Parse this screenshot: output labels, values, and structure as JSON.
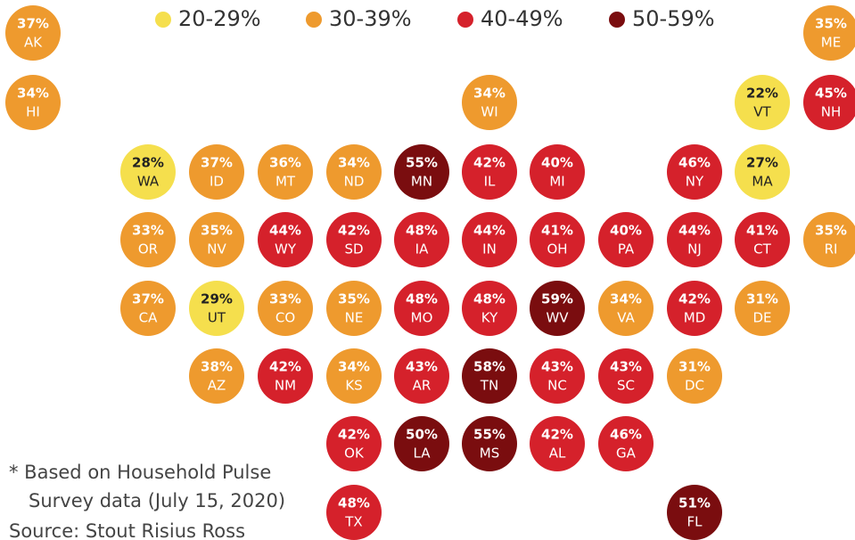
{
  "legend": [
    {
      "label": "20-29%",
      "color": "#f5df4d"
    },
    {
      "label": "30-39%",
      "color": "#ee9a2e"
    },
    {
      "label": "40-49%",
      "color": "#d5212b"
    },
    {
      "label": "50-59%",
      "color": "#7a0d0f"
    }
  ],
  "tiles": [
    {
      "state": "AK",
      "value": "37%",
      "color": "#ee9a2e"
    },
    {
      "state": "ME",
      "value": "35%",
      "color": "#ee9a2e"
    },
    {
      "state": "HI",
      "value": "34%",
      "color": "#ee9a2e"
    },
    {
      "state": "WI",
      "value": "34%",
      "color": "#ee9a2e"
    },
    {
      "state": "VT",
      "value": "22%",
      "color": "#f5df4d"
    },
    {
      "state": "NH",
      "value": "45%",
      "color": "#d5212b"
    },
    {
      "state": "WA",
      "value": "28%",
      "color": "#f5df4d"
    },
    {
      "state": "ID",
      "value": "37%",
      "color": "#ee9a2e"
    },
    {
      "state": "MT",
      "value": "36%",
      "color": "#ee9a2e"
    },
    {
      "state": "ND",
      "value": "34%",
      "color": "#ee9a2e"
    },
    {
      "state": "MN",
      "value": "55%",
      "color": "#7a0d0f"
    },
    {
      "state": "IL",
      "value": "42%",
      "color": "#d5212b"
    },
    {
      "state": "MI",
      "value": "40%",
      "color": "#d5212b"
    },
    {
      "state": "NY",
      "value": "46%",
      "color": "#d5212b"
    },
    {
      "state": "MA",
      "value": "27%",
      "color": "#f5df4d"
    },
    {
      "state": "OR",
      "value": "33%",
      "color": "#ee9a2e"
    },
    {
      "state": "NV",
      "value": "35%",
      "color": "#ee9a2e"
    },
    {
      "state": "WY",
      "value": "44%",
      "color": "#d5212b"
    },
    {
      "state": "SD",
      "value": "42%",
      "color": "#d5212b"
    },
    {
      "state": "IA",
      "value": "48%",
      "color": "#d5212b"
    },
    {
      "state": "IN",
      "value": "44%",
      "color": "#d5212b"
    },
    {
      "state": "OH",
      "value": "41%",
      "color": "#d5212b"
    },
    {
      "state": "PA",
      "value": "40%",
      "color": "#d5212b"
    },
    {
      "state": "NJ",
      "value": "44%",
      "color": "#d5212b"
    },
    {
      "state": "CT",
      "value": "41%",
      "color": "#d5212b"
    },
    {
      "state": "RI",
      "value": "35%",
      "color": "#ee9a2e"
    },
    {
      "state": "CA",
      "value": "37%",
      "color": "#ee9a2e"
    },
    {
      "state": "UT",
      "value": "29%",
      "color": "#f5df4d"
    },
    {
      "state": "CO",
      "value": "33%",
      "color": "#ee9a2e"
    },
    {
      "state": "NE",
      "value": "35%",
      "color": "#ee9a2e"
    },
    {
      "state": "MO",
      "value": "48%",
      "color": "#d5212b"
    },
    {
      "state": "KY",
      "value": "48%",
      "color": "#d5212b"
    },
    {
      "state": "WV",
      "value": "59%",
      "color": "#7a0d0f"
    },
    {
      "state": "VA",
      "value": "34%",
      "color": "#ee9a2e"
    },
    {
      "state": "MD",
      "value": "42%",
      "color": "#d5212b"
    },
    {
      "state": "DE",
      "value": "31%",
      "color": "#ee9a2e"
    },
    {
      "state": "AZ",
      "value": "38%",
      "color": "#ee9a2e"
    },
    {
      "state": "NM",
      "value": "42%",
      "color": "#d5212b"
    },
    {
      "state": "KS",
      "value": "34%",
      "color": "#ee9a2e"
    },
    {
      "state": "AR",
      "value": "43%",
      "color": "#d5212b"
    },
    {
      "state": "TN",
      "value": "58%",
      "color": "#7a0d0f"
    },
    {
      "state": "NC",
      "value": "43%",
      "color": "#d5212b"
    },
    {
      "state": "SC",
      "value": "43%",
      "color": "#d5212b"
    },
    {
      "state": "DC",
      "value": "31%",
      "color": "#ee9a2e"
    },
    {
      "state": "OK",
      "value": "42%",
      "color": "#d5212b"
    },
    {
      "state": "LA",
      "value": "50%",
      "color": "#7a0d0f"
    },
    {
      "state": "MS",
      "value": "55%",
      "color": "#7a0d0f"
    },
    {
      "state": "AL",
      "value": "42%",
      "color": "#d5212b"
    },
    {
      "state": "GA",
      "value": "46%",
      "color": "#d5212b"
    },
    {
      "state": "TX",
      "value": "48%",
      "color": "#d5212b"
    },
    {
      "state": "FL",
      "value": "51%",
      "color": "#7a0d0f"
    }
  ],
  "footnote": [
    "* Based on Household Pulse",
    "Survey data (July 15, 2020)"
  ],
  "source": "Source: Stout Risius Ross"
}
